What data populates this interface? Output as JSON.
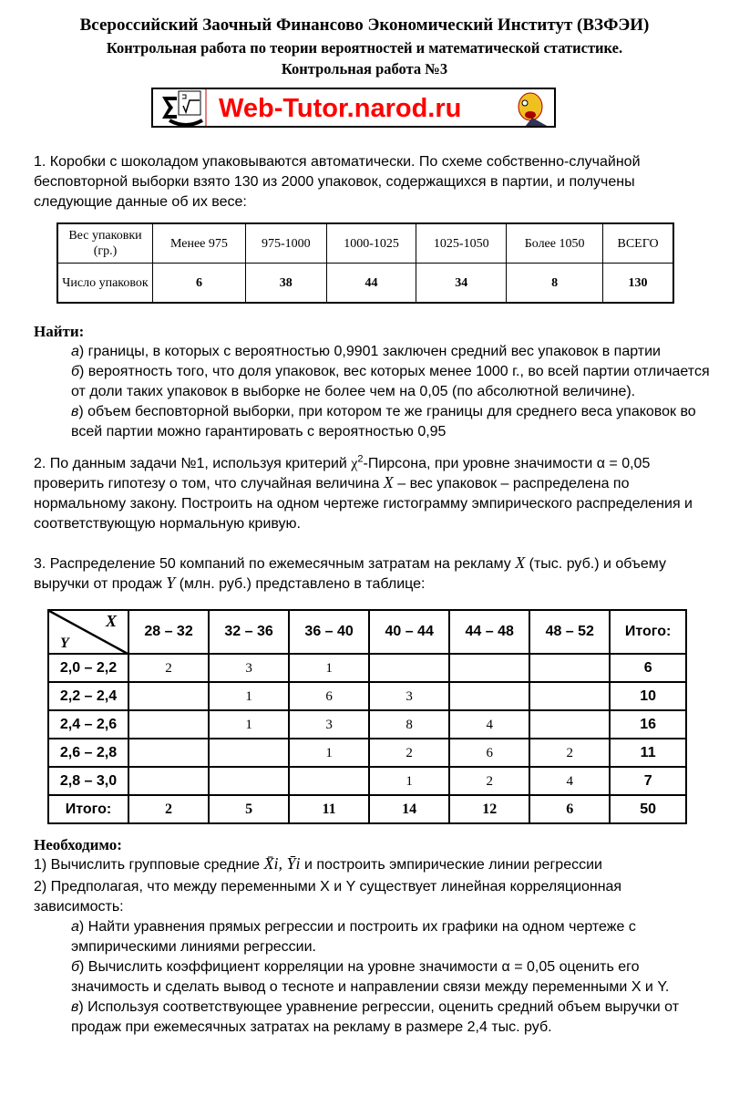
{
  "header": {
    "institute": "Всероссийский Заочный Финансово Экономический Институт (ВЗФЭИ)",
    "subtitle": "Контрольная работа по теории вероятностей и математической статистике.",
    "work_number": "Контрольная работа №3"
  },
  "logo": {
    "text": "Web-Tutor.narod.ru",
    "color": "#ff0000"
  },
  "problem1": {
    "text": "1. Коробки с шоколадом упаковываются автоматически. По схеме собственно-случайной бесповторной выборки взято 130 из 2000 упаковок, содержащихся в партии, и получены следующие данные об их весе:",
    "table": {
      "row1": [
        "Вес упаковки (гр.)",
        "Менее 975",
        "975-1000",
        "1000-1025",
        "1025-1050",
        "Более 1050",
        "ВСЕГО"
      ],
      "row2": [
        "Число упаковок",
        "6",
        "38",
        "44",
        "34",
        "8",
        "130"
      ]
    },
    "find_label": "Найти:",
    "items": [
      {
        "letter": "а",
        "text": ") границы, в которых с вероятностью 0,9901 заключен средний вес упаковок в партии"
      },
      {
        "letter": "б",
        "text": ") вероятность того, что доля упаковок, вес которых менее 1000 г., во всей партии отличается от доли таких упаковок в выборке не более чем на 0,05 (по абсолютной величине)."
      },
      {
        "letter": "в",
        "text": ") объем бесповторной выборки, при котором те же границы для среднего веса упаковок во всей партии можно гарантировать с вероятностью 0,95"
      }
    ]
  },
  "problem2": {
    "part1": "2. По данным задачи №1, используя критерий ",
    "chi": "χ",
    "sup": "2",
    "part2": "-Пирсона, при уровне значимости α = 0,05 проверить гипотезу о том, что случайная величина ",
    "var": "X",
    "part3": " – вес упаковок – распределена по нормальному закону. Построить на одном чертеже гистограмму эмпирического распределения и соответствующую нормальную кривую."
  },
  "problem3": {
    "part1": "3. Распределение 50 компаний по ежемесячным затратам на рекламу ",
    "x": "X",
    "part2": " (тыс. руб.) и объему выручки от продаж ",
    "y": "Y",
    "part3": " (млн. руб.) представлено в таблице:",
    "table": {
      "corner_x": "X",
      "corner_y": "Y",
      "columns": [
        "28 – 32",
        "32 – 36",
        "36 – 40",
        "40 – 44",
        "44 – 48",
        "48 – 52",
        "Итого:"
      ],
      "rows": [
        {
          "label": "2,0 – 2,2",
          "cells": [
            "2",
            "3",
            "1",
            "",
            "",
            ""
          ],
          "total": "6"
        },
        {
          "label": "2,2 – 2,4",
          "cells": [
            "",
            "1",
            "6",
            "3",
            "",
            ""
          ],
          "total": "10"
        },
        {
          "label": "2,4 – 2,6",
          "cells": [
            "",
            "1",
            "3",
            "8",
            "4",
            ""
          ],
          "total": "16"
        },
        {
          "label": "2,6 – 2,8",
          "cells": [
            "",
            "",
            "1",
            "2",
            "6",
            "2"
          ],
          "total": "11"
        },
        {
          "label": "2,8 – 3,0",
          "cells": [
            "",
            "",
            "",
            "1",
            "2",
            "4"
          ],
          "total": "7"
        }
      ],
      "footer": {
        "label": "Итого:",
        "cells": [
          "2",
          "5",
          "11",
          "14",
          "12",
          "6"
        ],
        "total": "50"
      }
    },
    "required_label": "Необходимо:",
    "req1a": "1) Вычислить групповые средние ",
    "req1_math": "X̄i, Ȳi",
    "req1b": " и построить эмпирические линии регрессии",
    "req2": "2) Предполагая, что между переменными X и Y существует линейная корреляционная зависимость:",
    "items": [
      {
        "letter": "а",
        "text": ") Найти уравнения прямых регрессии и построить их графики на одном чертеже с эмпирическими линиями регрессии."
      },
      {
        "letter": "б",
        "text": ") Вычислить коэффициент корреляции на уровне значимости α = 0,05  оценить его значимость и сделать вывод о тесноте и направлении связи между переменными X и Y."
      },
      {
        "letter": "в",
        "text": ") Используя соответствующее уравнение регрессии, оценить средний объем выручки от продаж при ежемесячных затратах на рекламу в размере 2,4 тыс. руб."
      }
    ]
  }
}
